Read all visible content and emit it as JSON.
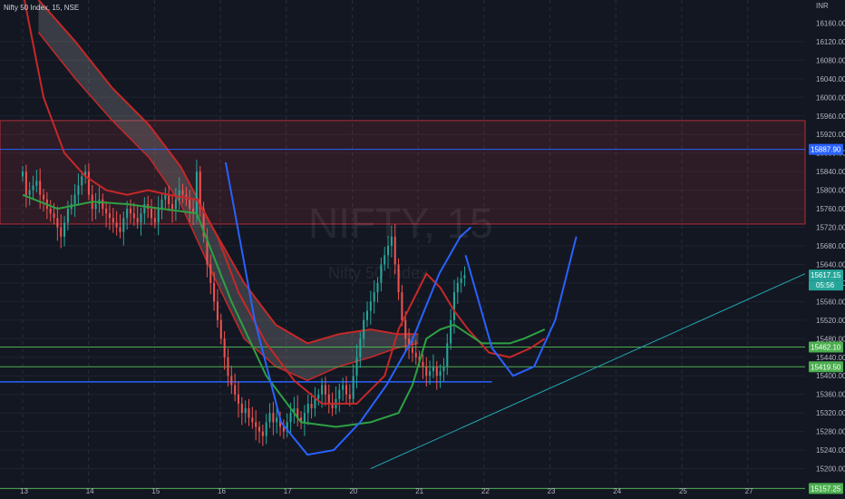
{
  "header": {
    "symbol_line": "Nifty 50 Index, 15, NSE"
  },
  "watermark": {
    "symbol": "NIFTY, 15",
    "name": "Nifty 50 Index"
  },
  "currency": "INR",
  "colors": {
    "bg": "#131722",
    "up": "#26a69a",
    "down": "#ef5350",
    "ma": "#2ea043",
    "ema": "#c62828",
    "curve": "#2962ff",
    "trend": "#22a9b3",
    "zone": "#f23645",
    "green_line": "#4caf50"
  },
  "chart_data": {
    "type": "candlestick",
    "title": "Nifty 50 Index, 15, NSE",
    "ylim": [
      15160,
      16200
    ],
    "y_ticks": [
      15200,
      15240,
      15280,
      15320,
      15360,
      15400,
      15440,
      15480,
      15520,
      15560,
      15600,
      15640,
      15680,
      15720,
      15760,
      15800,
      15840,
      15880,
      15920,
      15960,
      16000,
      16040,
      16080,
      16120
    ],
    "top_tick_label": "16160.00",
    "x_ticks": [
      {
        "day": "13",
        "i": 0
      },
      {
        "day": "14",
        "i": 25
      },
      {
        "day": "15",
        "i": 50
      },
      {
        "day": "16",
        "i": 75
      },
      {
        "day": "17",
        "i": 100
      },
      {
        "day": "20",
        "i": 125
      },
      {
        "day": "21",
        "i": 150
      },
      {
        "day": "22",
        "i": 175
      },
      {
        "day": "23",
        "i": 200
      },
      {
        "day": "24",
        "i": 225
      },
      {
        "day": "25",
        "i": 250
      },
      {
        "day": "27",
        "i": 275
      }
    ],
    "price_levels": [
      {
        "name": "level-15887",
        "value": 15887.9,
        "label": "15887.90",
        "color": "#2962ff"
      },
      {
        "name": "level-15462",
        "value": 15462.1,
        "label": "15462.10",
        "color": "#4caf50"
      },
      {
        "name": "level-15419",
        "value": 15419.5,
        "label": "15419.50",
        "color": "#4caf50"
      },
      {
        "name": "level-15157",
        "value": 15157.25,
        "label": "15157.25",
        "color": "#4caf50"
      }
    ],
    "current_price": {
      "value": 15617.15,
      "label": "15617.15",
      "countdown": "05:56"
    },
    "resistance_zone": [
      15727,
      15950
    ],
    "support_line_value": 15387,
    "closes": [
      15840,
      15790,
      15800,
      15810,
      15820,
      15790,
      15780,
      15760,
      15750,
      15740,
      15720,
      15700,
      15730,
      15760,
      15770,
      15790,
      15810,
      15830,
      15840,
      15790,
      15760,
      15770,
      15780,
      15760,
      15750,
      15740,
      15730,
      15720,
      15710,
      15740,
      15760,
      15750,
      15740,
      15730,
      15750,
      15770,
      15760,
      15740,
      15730,
      15760,
      15780,
      15790,
      15770,
      15760,
      15780,
      15800,
      15790,
      15780,
      15760,
      15750,
      15840,
      15760,
      15700,
      15640,
      15600,
      15560,
      15520,
      15480,
      15440,
      15400,
      15380,
      15360,
      15340,
      15320,
      15330,
      15310,
      15300,
      15290,
      15280,
      15270,
      15300,
      15320,
      15300,
      15310,
      15290,
      15280,
      15300,
      15320,
      15330,
      15310,
      15300,
      15320,
      15340,
      15330,
      15350,
      15360,
      15380,
      15360,
      15340,
      15330,
      15350,
      15370,
      15380,
      15360,
      15350,
      15400,
      15440,
      15480,
      15520,
      15540,
      15560,
      15580,
      15600,
      15640,
      15660,
      15680,
      15700,
      15640,
      15580,
      15520,
      15480,
      15460,
      15450,
      15440,
      15430,
      15420,
      15400,
      15410,
      15420,
      15400,
      15410,
      15420,
      15470,
      15520,
      15580,
      15600,
      15610,
      15617
    ],
    "ma_green": [
      [
        0,
        15790
      ],
      [
        10,
        15760
      ],
      [
        20,
        15775
      ],
      [
        30,
        15770
      ],
      [
        40,
        15760
      ],
      [
        50,
        15750
      ],
      [
        60,
        15560
      ],
      [
        70,
        15400
      ],
      [
        80,
        15300
      ],
      [
        90,
        15290
      ],
      [
        100,
        15300
      ],
      [
        108,
        15320
      ],
      [
        112,
        15380
      ],
      [
        116,
        15480
      ],
      [
        120,
        15500
      ],
      [
        124,
        15510
      ],
      [
        128,
        15490
      ],
      [
        132,
        15470
      ],
      [
        136,
        15470
      ],
      [
        140,
        15470
      ],
      [
        144,
        15480
      ],
      [
        150,
        15500
      ]
    ],
    "ema_red": [
      [
        0,
        16230
      ],
      [
        6,
        16000
      ],
      [
        12,
        15880
      ],
      [
        18,
        15830
      ],
      [
        24,
        15800
      ],
      [
        30,
        15790
      ],
      [
        36,
        15800
      ],
      [
        42,
        15790
      ],
      [
        50,
        15780
      ],
      [
        56,
        15700
      ],
      [
        62,
        15580
      ],
      [
        70,
        15470
      ],
      [
        78,
        15390
      ],
      [
        86,
        15340
      ],
      [
        96,
        15340
      ],
      [
        104,
        15400
      ],
      [
        108,
        15500
      ],
      [
        112,
        15560
      ],
      [
        116,
        15620
      ],
      [
        120,
        15590
      ],
      [
        124,
        15540
      ],
      [
        128,
        15500
      ],
      [
        134,
        15450
      ],
      [
        140,
        15440
      ],
      [
        146,
        15460
      ],
      [
        150,
        15480
      ]
    ],
    "band_upper": [
      [
        6,
        16210
      ],
      [
        20,
        16120
      ],
      [
        34,
        16020
      ],
      [
        48,
        15940
      ],
      [
        60,
        15850
      ],
      [
        72,
        15720
      ],
      [
        84,
        15600
      ],
      [
        96,
        15510
      ],
      [
        108,
        15470
      ],
      [
        120,
        15490
      ],
      [
        132,
        15500
      ],
      [
        142,
        15490
      ],
      [
        150,
        15490
      ]
    ],
    "band_lower": [
      [
        6,
        16140
      ],
      [
        20,
        16040
      ],
      [
        34,
        15950
      ],
      [
        48,
        15870
      ],
      [
        60,
        15770
      ],
      [
        72,
        15620
      ],
      [
        84,
        15480
      ],
      [
        96,
        15420
      ],
      [
        108,
        15390
      ],
      [
        120,
        15420
      ],
      [
        132,
        15440
      ],
      [
        142,
        15460
      ],
      [
        150,
        15470
      ]
    ]
  }
}
